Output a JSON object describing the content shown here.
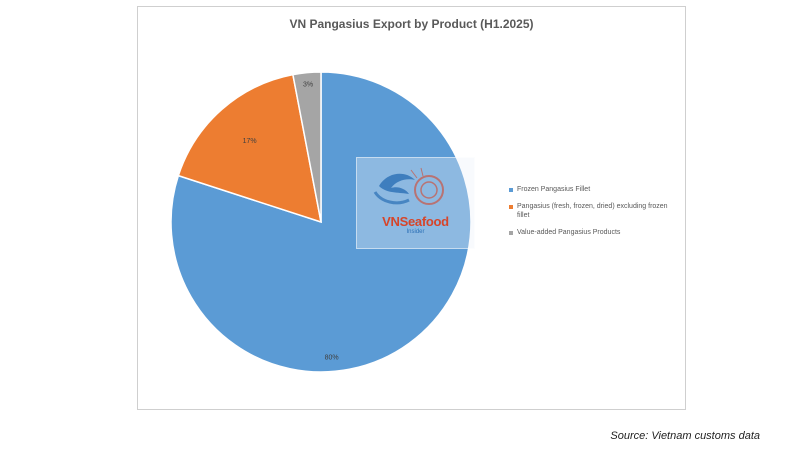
{
  "chart_data": {
    "type": "pie",
    "title": "VN Pangasius Export by Product (H1.2025)",
    "categories": [
      "Frozen Pangasius Fillet",
      "Pangasius (fresh, frozen, dried) excluding frozen fillet",
      "Value-added Pangasius Products"
    ],
    "values": [
      80,
      17,
      3
    ],
    "labels": [
      "80%",
      "17%",
      "3%"
    ],
    "colors": [
      "#5b9bd5",
      "#ed7d31",
      "#a5a5a5"
    ],
    "legend_position": "right"
  },
  "watermark": {
    "brand": "VNSeafood",
    "sub": "Insider"
  },
  "source": "Source: Vietnam customs data"
}
